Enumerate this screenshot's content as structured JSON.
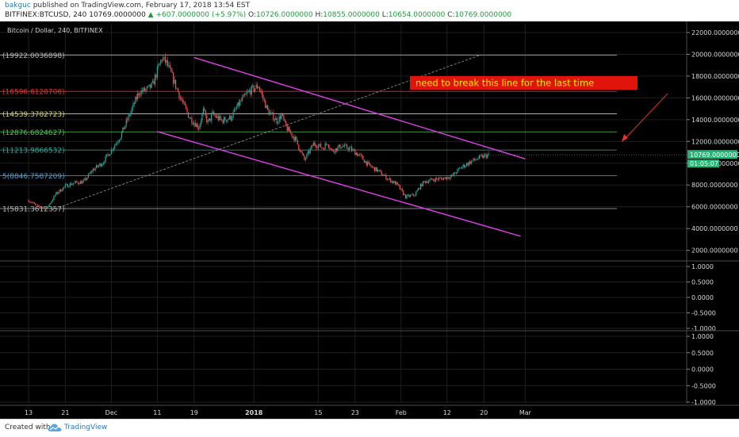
{
  "header": {
    "user": "bakguc",
    "published_text": "published on TradingView.com, February 17, 2018 13:54 EST",
    "symbol_line": "BITFINEX:BTCUSD, 240",
    "price": "10769.0000000",
    "change": "+607.0000000 (+5.97%)",
    "o_label": "O:",
    "o_value": "10726.0000000",
    "h_label": "H:",
    "h_value": "10855.0000000",
    "l_label": "L:",
    "l_value": "10654.0000000",
    "c_label": "C:",
    "c_value": "10769.0000000"
  },
  "footer": {
    "created_with": "Created with",
    "brand": "TradingView"
  },
  "chart_data": {
    "type": "candlestick",
    "legend_title": "Bitcoin / Dollar, 240, BITFINEX",
    "ylim": [
      1100,
      22800
    ],
    "y_ticks": [
      "22000.0000000",
      "20000.0000000",
      "18000.0000000",
      "16000.0000000",
      "14000.0000000",
      "12000.0000000",
      "10000.0000000",
      "8000.0000000",
      "6000.0000000",
      "4000.0000000",
      "2000.0000000"
    ],
    "y_tick_values": [
      22000,
      20000,
      18000,
      16000,
      14000,
      12000,
      10000,
      8000,
      6000,
      4000,
      2000
    ],
    "x_ticks": [
      "13",
      "21",
      "Dec",
      "11",
      "19",
      "2018",
      "15",
      "23",
      "Feb",
      "12",
      "20",
      "Mar"
    ],
    "x_tick_days": [
      0,
      8,
      18,
      28,
      36,
      49,
      63,
      71,
      81,
      91,
      99,
      108
    ],
    "last_price_label": "10769.0000000",
    "countdown_label": "01:05:07",
    "annotation": "need to break this line for the last time",
    "price_series": {
      "day": [
        0,
        2,
        4,
        6,
        8,
        10,
        12,
        14,
        16,
        18,
        20,
        22,
        24,
        26,
        27,
        28,
        29,
        30,
        31,
        33,
        35,
        37,
        38,
        39,
        40,
        42,
        44,
        46,
        48,
        50,
        52,
        54,
        55,
        56,
        58,
        60,
        62,
        64,
        65,
        66,
        68,
        70,
        72,
        74,
        76,
        78,
        80,
        82,
        84,
        85,
        86,
        88,
        90,
        92,
        94,
        96,
        98,
        100
      ],
      "close": [
        6600,
        6000,
        5900,
        7200,
        7900,
        8200,
        8300,
        9400,
        10000,
        11200,
        12500,
        14500,
        16500,
        16800,
        17200,
        18500,
        19650,
        19200,
        18200,
        16000,
        14200,
        13300,
        14800,
        13700,
        14500,
        13900,
        14200,
        15600,
        16600,
        17100,
        14800,
        13900,
        14400,
        13300,
        12200,
        10300,
        11800,
        11400,
        11900,
        11100,
        11600,
        11300,
        10700,
        9800,
        9300,
        8600,
        8100,
        6900,
        7100,
        7800,
        8300,
        8500,
        8600,
        8800,
        9600,
        10100,
        10500,
        10769
      ]
    },
    "fib_levels": [
      {
        "label": "(19922.0036898)",
        "value": 19922,
        "color": "#b7b7b7"
      },
      {
        "label": "(16596.6120706)",
        "value": 16596,
        "color": "#e0332f"
      },
      {
        "label": "(14539.3782723)",
        "value": 14539,
        "color": "#d6d65c"
      },
      {
        "label": "(12876.6824627)",
        "value": 12876,
        "color": "#59c05a"
      },
      {
        "label": "(11213.9866532)",
        "value": 11213,
        "color": "#3aa39a"
      },
      {
        "label": "(8846.7587209)",
        "value": 8846,
        "color": "#4aa2d6",
        "prefix": "5"
      },
      {
        "label": "(5831.3612357)",
        "value": 5831,
        "color": "#b7b7b7",
        "prefix": "1"
      }
    ],
    "trendlines": [
      {
        "name": "",
        "from": [
          36,
          19700
        ],
        "to": [
          108,
          10400
        ],
        "color": "#e040e8"
      },
      {
        "name": "",
        "from": [
          28,
          12900
        ],
        "to": [
          107,
          3300
        ],
        "color": "#e040e8"
      },
      {
        "name": "",
        "from": [
          5,
          5700
        ],
        "to": [
          98,
          19900
        ],
        "color": "#9a9a9a",
        "dashed": true
      }
    ],
    "oscillator_panels": [
      {
        "ticks": [
          "1.0000",
          "0.5000",
          "0.0000",
          "-0.5000",
          "-1.0000"
        ],
        "tick_values": [
          1,
          0.5,
          0,
          -0.5,
          -1
        ]
      },
      {
        "ticks": [
          "1.0000",
          "0.5000",
          "0.0000",
          "-0.5000",
          "-1.0000"
        ],
        "tick_values": [
          1,
          0.5,
          0,
          -0.5,
          -1
        ]
      }
    ],
    "colors": {
      "up": "#26a69a",
      "down": "#ef5350",
      "trend": "#e040e8",
      "arrow": "#e0332f",
      "annotation_bg": "#e0140b",
      "annotation_text": "#ffe600",
      "last_price_bg": "#22b573"
    }
  }
}
